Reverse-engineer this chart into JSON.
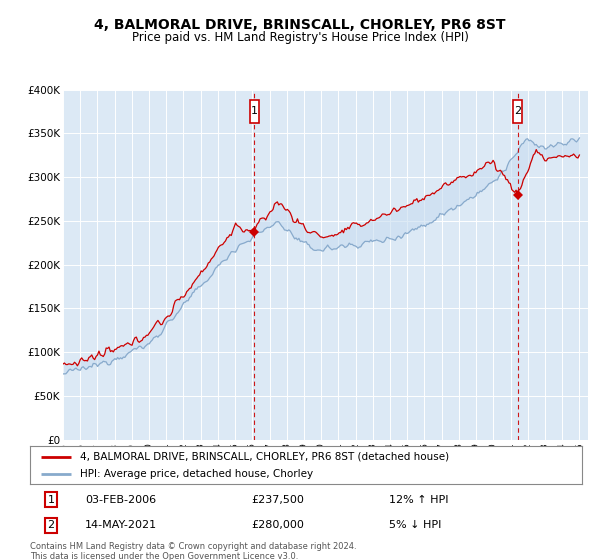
{
  "title": "4, BALMORAL DRIVE, BRINSCALL, CHORLEY, PR6 8ST",
  "subtitle": "Price paid vs. HM Land Registry's House Price Index (HPI)",
  "yticks": [
    0,
    50000,
    100000,
    150000,
    200000,
    250000,
    300000,
    350000,
    400000
  ],
  "ytick_labels": [
    "£0",
    "£50K",
    "£100K",
    "£150K",
    "£200K",
    "£250K",
    "£300K",
    "£350K",
    "£400K"
  ],
  "plot_bg_color": "#dce9f5",
  "outer_bg_color": "#ffffff",
  "red_line_color": "#cc0000",
  "blue_line_color": "#88aacc",
  "blue_fill_color": "#c8ddf0",
  "annotation1_date": "03-FEB-2006",
  "annotation1_price": "£237,500",
  "annotation1_hpi": "12% ↑ HPI",
  "annotation2_date": "14-MAY-2021",
  "annotation2_price": "£280,000",
  "annotation2_hpi": "5% ↓ HPI",
  "legend_red_label": "4, BALMORAL DRIVE, BRINSCALL, CHORLEY, PR6 8ST (detached house)",
  "legend_blue_label": "HPI: Average price, detached house, Chorley",
  "footer_text": "Contains HM Land Registry data © Crown copyright and database right 2024.\nThis data is licensed under the Open Government Licence v3.0.",
  "ylim": [
    0,
    400000
  ],
  "sale1_year": 2006.09,
  "sale2_year": 2021.37,
  "sale1_price": 237500,
  "sale2_price": 280000
}
